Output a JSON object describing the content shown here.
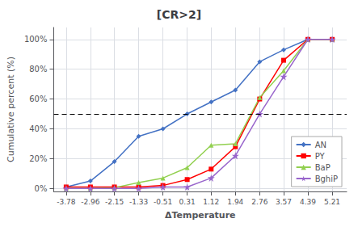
{
  "chart_data": {
    "type": "line",
    "title": "[CR>2]",
    "xlabel": "ΔTemperature",
    "ylabel": "Cumulative percent (%)",
    "x": [
      -3.78,
      -2.96,
      -2.15,
      -1.33,
      -0.51,
      0.31,
      1.12,
      1.94,
      2.76,
      3.57,
      4.39,
      5.21
    ],
    "series": [
      {
        "name": "AN",
        "color": "#4472C4",
        "marker": "diamond",
        "values": [
          0.01,
          0.05,
          0.18,
          0.35,
          0.4,
          0.5,
          0.58,
          0.66,
          0.85,
          0.93,
          1.0,
          1.0
        ]
      },
      {
        "name": "PY",
        "color": "#FF0000",
        "marker": "square",
        "values": [
          0.01,
          0.01,
          0.01,
          0.01,
          0.02,
          0.06,
          0.13,
          0.28,
          0.6,
          0.86,
          1.0,
          1.0
        ]
      },
      {
        "name": "BaP",
        "color": "#92D050",
        "marker": "triangle",
        "values": [
          0.0,
          0.0,
          0.005,
          0.04,
          0.07,
          0.14,
          0.29,
          0.3,
          0.61,
          0.79,
          1.0,
          1.0
        ]
      },
      {
        "name": "BghiP",
        "color": "#9966CC",
        "marker": "star",
        "values": [
          0.0,
          0.0,
          0.0,
          0.0,
          0.01,
          0.01,
          0.07,
          0.22,
          0.5,
          0.75,
          1.0,
          1.0
        ]
      }
    ],
    "xlim": [
      -4.2,
      5.7
    ],
    "xticks": [
      -3.78,
      -2.96,
      -2.15,
      -1.33,
      -0.51,
      0.31,
      1.12,
      1.94,
      2.76,
      3.57,
      4.39,
      5.21
    ],
    "ylim": [
      -0.02,
      1.08
    ],
    "yticks": [
      {
        "value": 0.0,
        "label": "0%"
      },
      {
        "value": 0.2,
        "label": "20%"
      },
      {
        "value": 0.4,
        "label": "40%"
      },
      {
        "value": 0.6,
        "label": "60%"
      },
      {
        "value": 0.8,
        "label": "80%"
      },
      {
        "value": 1.0,
        "label": "100%"
      }
    ],
    "reference_lines": [
      {
        "y": 0.5,
        "line_style": "dashed"
      }
    ],
    "grid": true,
    "legend": "lower right"
  }
}
